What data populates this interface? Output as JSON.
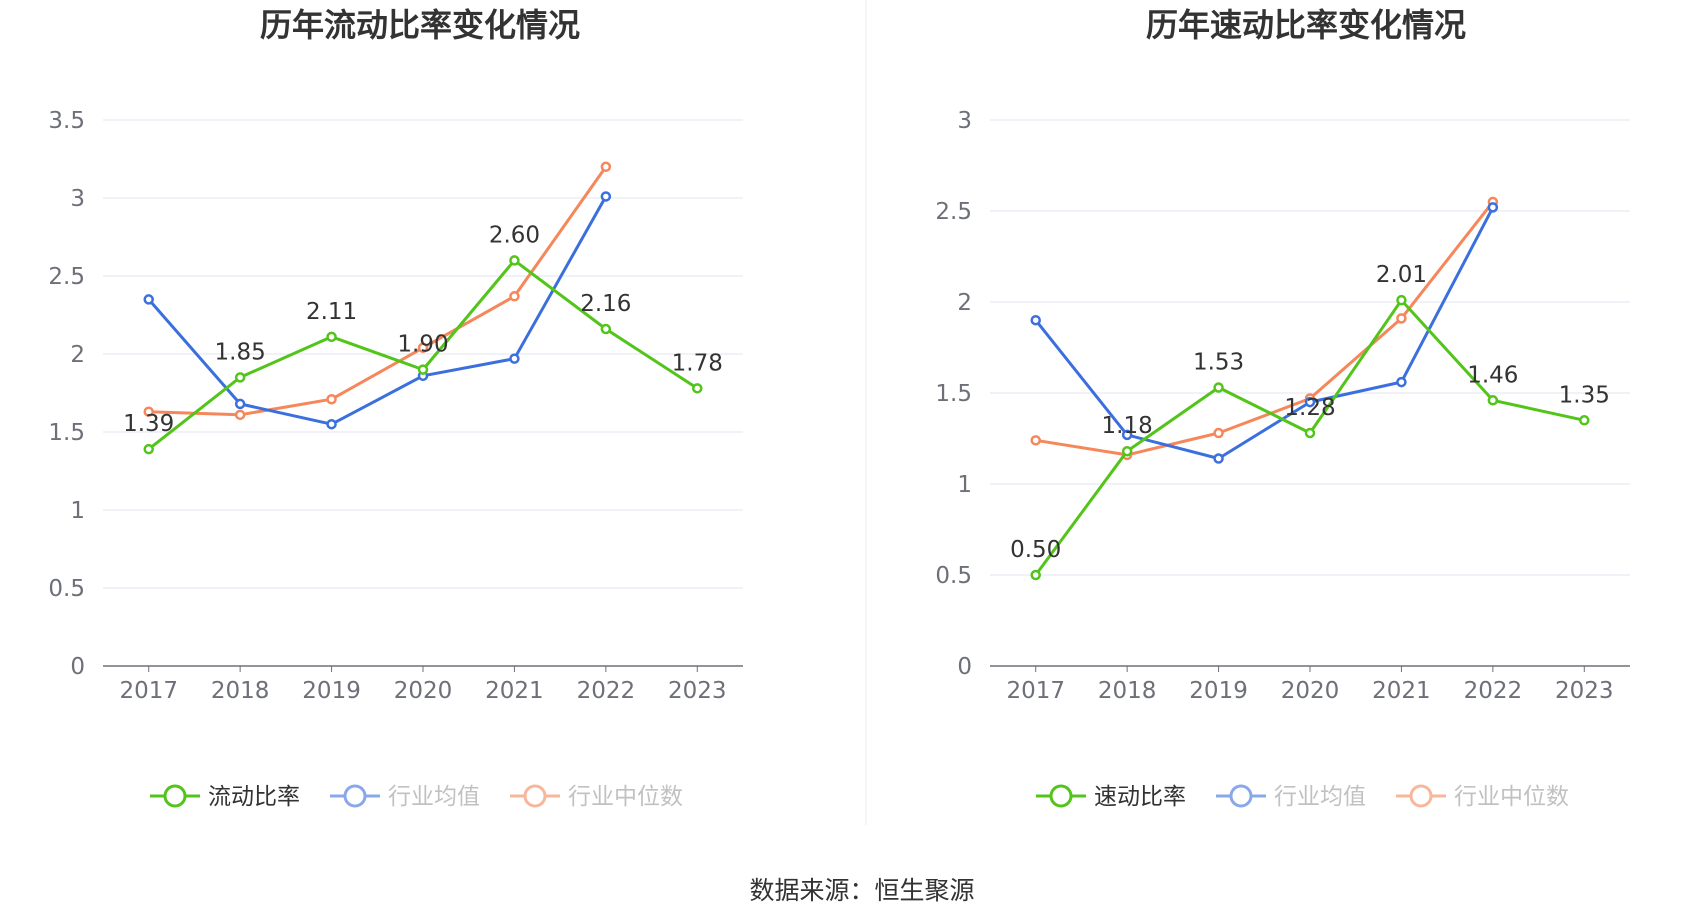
{
  "source": "数据来源：恒生聚源",
  "colors": {
    "main": "#52c41a",
    "avg": "#3b6fde",
    "median": "#f5875a",
    "grid": "#e0e6f1",
    "axis": "#6e7079"
  },
  "chart_data": [
    {
      "type": "line",
      "title": "历年流动比率变化情况",
      "categories": [
        "2017",
        "2018",
        "2019",
        "2020",
        "2021",
        "2022",
        "2023"
      ],
      "ylim": [
        0,
        3.5
      ],
      "yticks": [
        "0",
        "0.5",
        "1",
        "1.5",
        "2",
        "2.5",
        "3",
        "3.5"
      ],
      "grid": true,
      "legend_position": "bottom",
      "series": [
        {
          "name": "流动比率",
          "key": "main",
          "values": [
            1.39,
            1.85,
            2.11,
            1.9,
            2.6,
            2.16,
            1.78
          ],
          "labels": [
            "1.39",
            "1.85",
            "2.11",
            "1.90",
            "2.60",
            "2.16",
            "1.78"
          ]
        },
        {
          "name": "行业均值",
          "key": "avg",
          "values": [
            2.35,
            1.68,
            1.55,
            1.86,
            1.97,
            3.01,
            null
          ]
        },
        {
          "name": "行业中位数",
          "key": "median",
          "values": [
            1.63,
            1.61,
            1.71,
            2.04,
            2.37,
            3.2,
            null
          ]
        }
      ]
    },
    {
      "type": "line",
      "title": "历年速动比率变化情况",
      "categories": [
        "2017",
        "2018",
        "2019",
        "2020",
        "2021",
        "2022",
        "2023"
      ],
      "ylim": [
        0,
        3
      ],
      "yticks": [
        "0",
        "0.5",
        "1",
        "1.5",
        "2",
        "2.5",
        "3"
      ],
      "grid": true,
      "legend_position": "bottom",
      "series": [
        {
          "name": "速动比率",
          "key": "main",
          "values": [
            0.5,
            1.18,
            1.53,
            1.28,
            2.01,
            1.46,
            1.35
          ],
          "labels": [
            "0.50",
            "1.18",
            "1.53",
            "1.28",
            "2.01",
            "1.46",
            "1.35"
          ]
        },
        {
          "name": "行业均值",
          "key": "avg",
          "values": [
            1.9,
            1.27,
            1.14,
            1.45,
            1.56,
            2.52,
            null
          ]
        },
        {
          "name": "行业中位数",
          "key": "median",
          "values": [
            1.24,
            1.16,
            1.28,
            1.47,
            1.91,
            2.55,
            null
          ]
        }
      ]
    }
  ]
}
